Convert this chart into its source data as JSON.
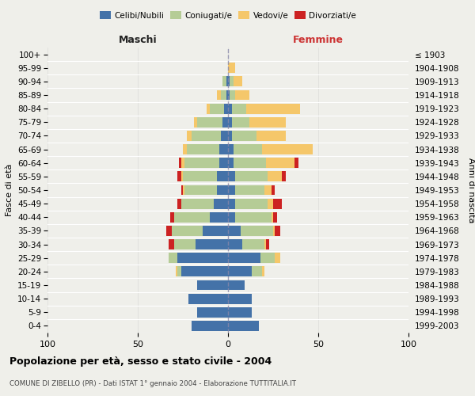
{
  "age_groups": [
    "100+",
    "95-99",
    "90-94",
    "85-89",
    "80-84",
    "75-79",
    "70-74",
    "65-69",
    "60-64",
    "55-59",
    "50-54",
    "45-49",
    "40-44",
    "35-39",
    "30-34",
    "25-29",
    "20-24",
    "15-19",
    "10-14",
    "5-9",
    "0-4"
  ],
  "birth_years": [
    "≤ 1903",
    "1904-1908",
    "1909-1913",
    "1914-1918",
    "1919-1923",
    "1924-1928",
    "1929-1933",
    "1934-1938",
    "1939-1943",
    "1944-1948",
    "1949-1953",
    "1954-1958",
    "1959-1963",
    "1964-1968",
    "1969-1973",
    "1974-1978",
    "1979-1983",
    "1984-1988",
    "1989-1993",
    "1994-1998",
    "1999-2003"
  ],
  "males": {
    "celibi": [
      0,
      0,
      1,
      1,
      2,
      3,
      4,
      5,
      5,
      6,
      6,
      8,
      10,
      14,
      18,
      28,
      26,
      17,
      22,
      17,
      20
    ],
    "coniugati": [
      0,
      0,
      2,
      3,
      8,
      14,
      16,
      18,
      19,
      19,
      18,
      18,
      20,
      17,
      12,
      5,
      2,
      0,
      0,
      0,
      0
    ],
    "vedovi": [
      0,
      0,
      0,
      2,
      2,
      2,
      3,
      2,
      2,
      1,
      1,
      0,
      0,
      0,
      0,
      0,
      1,
      0,
      0,
      0,
      0
    ],
    "divorziati": [
      0,
      0,
      0,
      0,
      0,
      0,
      0,
      0,
      1,
      2,
      1,
      2,
      2,
      3,
      3,
      0,
      0,
      0,
      0,
      0,
      0
    ]
  },
  "females": {
    "nubili": [
      0,
      0,
      1,
      1,
      2,
      2,
      2,
      3,
      3,
      4,
      4,
      4,
      4,
      7,
      8,
      18,
      13,
      9,
      13,
      13,
      17
    ],
    "coniugate": [
      0,
      0,
      2,
      3,
      8,
      10,
      14,
      16,
      18,
      18,
      16,
      18,
      20,
      18,
      12,
      8,
      6,
      0,
      0,
      0,
      0
    ],
    "vedove": [
      0,
      4,
      5,
      8,
      30,
      20,
      16,
      28,
      16,
      8,
      4,
      3,
      1,
      1,
      1,
      3,
      1,
      0,
      0,
      0,
      0
    ],
    "divorziate": [
      0,
      0,
      0,
      0,
      0,
      0,
      0,
      0,
      2,
      2,
      2,
      5,
      2,
      3,
      2,
      0,
      0,
      0,
      0,
      0,
      0
    ]
  },
  "colors": {
    "celibi": "#4472a8",
    "coniugati": "#b5cc96",
    "vedovi": "#f5c76a",
    "divorziati": "#cc2222"
  },
  "xlim": 100,
  "title": "Popolazione per età, sesso e stato civile - 2004",
  "subtitle": "COMUNE DI ZIBELLO (PR) - Dati ISTAT 1° gennaio 2004 - Elaborazione TUTTITALIA.IT",
  "xlabel_left": "Maschi",
  "xlabel_right": "Femmine",
  "ylabel": "Fasce di età",
  "ylabel_right": "Anni di nascita",
  "legend_labels": [
    "Celibi/Nubili",
    "Coniugati/e",
    "Vedovi/e",
    "Divorziati/e"
  ],
  "background_color": "#efefea"
}
